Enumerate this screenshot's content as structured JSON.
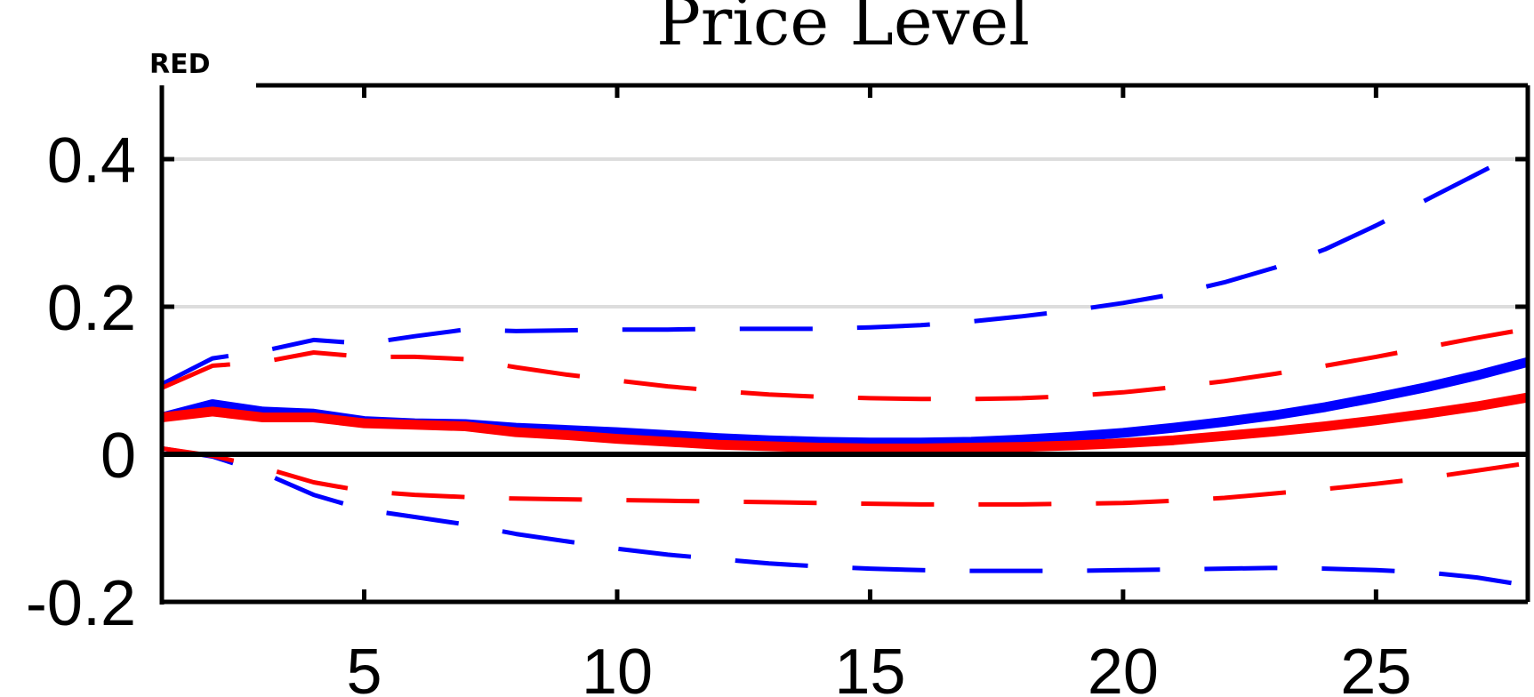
{
  "chart_data": {
    "type": "line",
    "title": "Price Level",
    "corner_label": "RED",
    "xlabel": "",
    "ylabel": "",
    "xlim": [
      1,
      28
    ],
    "ylim": [
      -0.2,
      0.5
    ],
    "x_ticks": [
      5,
      10,
      15,
      20,
      25
    ],
    "y_ticks": [
      -0.2,
      0,
      0.2,
      0.4
    ],
    "y_tick_labels": [
      "-0.2",
      "0",
      "0.2",
      "0.4"
    ],
    "grid": "horizontal",
    "zero_line": true,
    "colors": {
      "blue": "#0000ff",
      "red": "#ff0000",
      "grid": "#dddddd"
    },
    "x": [
      1,
      2,
      3,
      4,
      5,
      6,
      7,
      8,
      9,
      10,
      11,
      12,
      13,
      14,
      15,
      16,
      17,
      18,
      19,
      20,
      21,
      22,
      23,
      24,
      25,
      26,
      27,
      28
    ],
    "series": [
      {
        "color": "#0000ff",
        "style": "solid",
        "values": [
          0.05,
          0.068,
          0.058,
          0.055,
          0.045,
          0.042,
          0.041,
          0.036,
          0.033,
          0.03,
          0.026,
          0.022,
          0.019,
          0.017,
          0.016,
          0.016,
          0.017,
          0.02,
          0.024,
          0.029,
          0.036,
          0.044,
          0.053,
          0.064,
          0.077,
          0.091,
          0.107,
          0.125
        ]
      },
      {
        "color": "#0000ff",
        "style": "dashed",
        "values": [
          0.095,
          0.13,
          0.14,
          0.155,
          0.15,
          0.16,
          0.169,
          0.167,
          0.168,
          0.169,
          0.169,
          0.17,
          0.17,
          0.17,
          0.172,
          0.175,
          0.18,
          0.187,
          0.195,
          0.205,
          0.217,
          0.233,
          0.253,
          0.278,
          0.31,
          0.345,
          0.38,
          0.415
        ]
      },
      {
        "color": "#0000ff",
        "style": "dashed",
        "values": [
          0.008,
          -0.003,
          -0.025,
          -0.055,
          -0.075,
          -0.085,
          -0.095,
          -0.108,
          -0.118,
          -0.128,
          -0.136,
          -0.142,
          -0.148,
          -0.152,
          -0.155,
          -0.157,
          -0.158,
          -0.158,
          -0.158,
          -0.157,
          -0.156,
          -0.155,
          -0.154,
          -0.155,
          -0.157,
          -0.16,
          -0.167,
          -0.178
        ]
      },
      {
        "color": "#ff0000",
        "style": "solid",
        "values": [
          0.05,
          0.058,
          0.05,
          0.05,
          0.042,
          0.04,
          0.038,
          0.03,
          0.026,
          0.021,
          0.017,
          0.013,
          0.011,
          0.009,
          0.008,
          0.008,
          0.009,
          0.01,
          0.012,
          0.015,
          0.019,
          0.025,
          0.031,
          0.038,
          0.046,
          0.055,
          0.065,
          0.077
        ]
      },
      {
        "color": "#ff0000",
        "style": "dashed",
        "values": [
          0.09,
          0.12,
          0.125,
          0.138,
          0.132,
          0.132,
          0.129,
          0.118,
          0.108,
          0.1,
          0.092,
          0.086,
          0.081,
          0.078,
          0.076,
          0.075,
          0.075,
          0.076,
          0.079,
          0.084,
          0.091,
          0.099,
          0.109,
          0.12,
          0.132,
          0.145,
          0.158,
          0.17
        ]
      },
      {
        "color": "#ff0000",
        "style": "dashed",
        "values": [
          0.008,
          -0.002,
          -0.018,
          -0.038,
          -0.05,
          -0.055,
          -0.058,
          -0.06,
          -0.061,
          -0.062,
          -0.063,
          -0.064,
          -0.065,
          -0.066,
          -0.067,
          -0.068,
          -0.068,
          -0.068,
          -0.067,
          -0.066,
          -0.063,
          -0.059,
          -0.053,
          -0.047,
          -0.04,
          -0.032,
          -0.022,
          -0.012
        ]
      }
    ]
  }
}
